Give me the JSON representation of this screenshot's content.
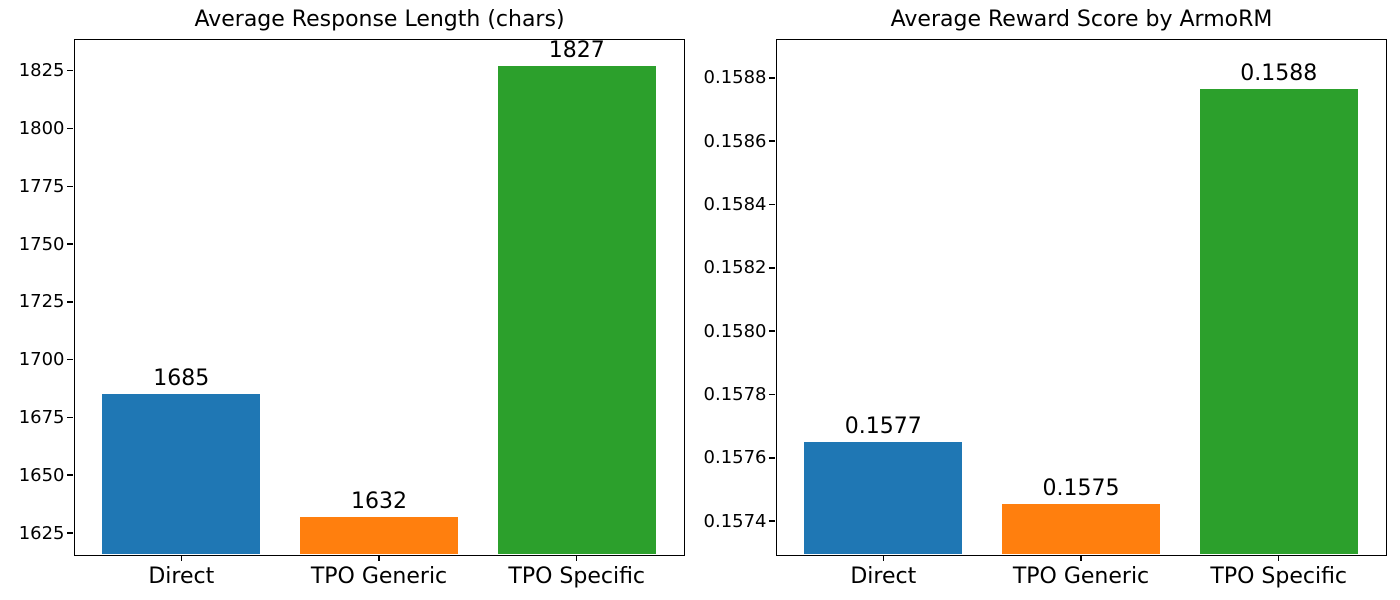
{
  "figure": {
    "background": "#ffffff",
    "text_color": "#000000"
  },
  "chart_data": [
    {
      "type": "bar",
      "title": "Average Response Length (chars)",
      "categories": [
        "Direct",
        "TPO Generic",
        "TPO Specific"
      ],
      "values": [
        1685,
        1632,
        1827
      ],
      "bar_labels": [
        "1685",
        "1632",
        "1827"
      ],
      "bar_colors": [
        "#1f77b4",
        "#ff7f0e",
        "#2ca02c"
      ],
      "bar_width": 0.8,
      "xlim": [
        -0.54,
        2.54
      ],
      "ylim": [
        1615.7,
        1838.5
      ],
      "yticks": [
        {
          "v": 1625,
          "label": "1625"
        },
        {
          "v": 1650,
          "label": "1650"
        },
        {
          "v": 1675,
          "label": "1675"
        },
        {
          "v": 1700,
          "label": "1700"
        },
        {
          "v": 1725,
          "label": "1725"
        },
        {
          "v": 1750,
          "label": "1750"
        },
        {
          "v": 1775,
          "label": "1775"
        },
        {
          "v": 1800,
          "label": "1800"
        },
        {
          "v": 1825,
          "label": "1825"
        }
      ],
      "grid": false,
      "legend": null
    },
    {
      "type": "bar",
      "title": "Average Reward Score by ArmoRM",
      "categories": [
        "Direct",
        "TPO Generic",
        "TPO Specific"
      ],
      "values": [
        0.157651,
        0.157455,
        0.158765
      ],
      "bar_labels": [
        "0.1577",
        "0.1575",
        "0.1588"
      ],
      "bar_colors": [
        "#1f77b4",
        "#ff7f0e",
        "#2ca02c"
      ],
      "bar_width": 0.8,
      "xlim": [
        -0.54,
        2.54
      ],
      "ylim": [
        0.157295,
        0.158921
      ],
      "yticks": [
        {
          "v": 0.1574,
          "label": "0.1574"
        },
        {
          "v": 0.1576,
          "label": "0.1576"
        },
        {
          "v": 0.1578,
          "label": "0.1578"
        },
        {
          "v": 0.158,
          "label": "0.1580"
        },
        {
          "v": 0.1582,
          "label": "0.1582"
        },
        {
          "v": 0.1584,
          "label": "0.1584"
        },
        {
          "v": 0.1586,
          "label": "0.1586"
        },
        {
          "v": 0.1588,
          "label": "0.1588"
        }
      ],
      "grid": false,
      "legend": null
    }
  ]
}
